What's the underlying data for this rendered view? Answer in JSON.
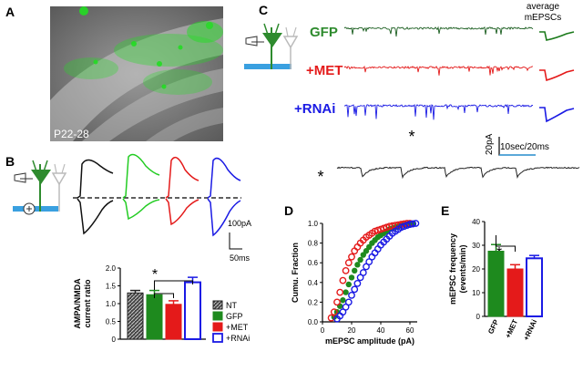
{
  "panels": {
    "a": {
      "letter": "A",
      "age_label": "P22-28"
    },
    "b": {
      "letter": "B",
      "scale_current": "100pA",
      "scale_time": "50ms",
      "ylabel_line1": "AMPA/NMDA",
      "ylabel_line2": "current ratio",
      "star1": "*",
      "star2": "*"
    },
    "c": {
      "letter": "C",
      "avg_title_line1": "average",
      "avg_title_line2": "mEPSCs",
      "trace_labels": [
        "GFP",
        "+MET",
        "+RNAi"
      ],
      "star": "*",
      "scale_current": "20pA",
      "scale_time": "10sec/20ms",
      "inset_star": "*"
    },
    "d": {
      "letter": "D"
    },
    "e": {
      "letter": "E",
      "star": "*"
    }
  },
  "colors": {
    "nt": "#1a1a1a",
    "gfp": "#1e8a1e",
    "met": "#e41a1a",
    "rnai": "#1a1ae4",
    "gfp_trace": "#1b5e20",
    "gfp_label": "#2e8b2e"
  },
  "chart_data": [
    {
      "type": "bar",
      "panel": "B",
      "categories": [
        "NT",
        "GFP",
        "+MET",
        "+RNAi"
      ],
      "values": [
        1.3,
        1.25,
        0.98,
        1.6
      ],
      "errors": [
        0.07,
        0.12,
        0.1,
        0.14
      ],
      "ylabel": "AMPA/NMDA current ratio",
      "ylim": [
        0,
        2.0
      ],
      "yticks": [
        "0",
        "0.5",
        "1.0",
        "1.5",
        "2.0"
      ],
      "legend": [
        "NT",
        "GFP",
        "+MET",
        "+RNAi"
      ],
      "legend_position": "right"
    },
    {
      "type": "scatter",
      "panel": "D",
      "xlabel": "mEPSC amplitude (pA)",
      "ylabel": "Cumu. Fraction",
      "xlim": [
        0,
        65
      ],
      "ylim": [
        0,
        1.0
      ],
      "xticks": [
        "0",
        "20",
        "40",
        "60"
      ],
      "yticks": [
        "0.0",
        "0.2",
        "0.4",
        "0.6",
        "0.8",
        "1.0"
      ],
      "series": [
        {
          "color": "gfp",
          "hollow": false,
          "x": [
            8,
            10,
            12,
            14,
            16,
            18,
            20,
            22,
            24,
            26,
            28,
            30,
            32,
            34,
            36,
            38,
            40,
            42,
            44,
            46,
            48,
            50,
            52,
            54,
            56,
            58,
            60,
            62
          ],
          "y": [
            0.05,
            0.1,
            0.16,
            0.22,
            0.3,
            0.38,
            0.45,
            0.52,
            0.58,
            0.63,
            0.68,
            0.72,
            0.76,
            0.8,
            0.83,
            0.86,
            0.88,
            0.9,
            0.92,
            0.94,
            0.95,
            0.96,
            0.97,
            0.98,
            0.985,
            0.99,
            0.995,
            1.0
          ]
        },
        {
          "color": "met",
          "hollow": true,
          "x": [
            6,
            8,
            10,
            12,
            14,
            16,
            18,
            20,
            22,
            24,
            26,
            28,
            30,
            32,
            34,
            36,
            38,
            40,
            42,
            44,
            46,
            48,
            50,
            52,
            54,
            56,
            58,
            60
          ],
          "y": [
            0.04,
            0.1,
            0.2,
            0.3,
            0.42,
            0.52,
            0.6,
            0.66,
            0.72,
            0.76,
            0.8,
            0.83,
            0.86,
            0.88,
            0.9,
            0.92,
            0.93,
            0.94,
            0.95,
            0.96,
            0.97,
            0.975,
            0.98,
            0.985,
            0.99,
            0.995,
            1.0,
            1.0
          ]
        },
        {
          "color": "rnai",
          "hollow": true,
          "x": [
            10,
            12,
            14,
            16,
            18,
            20,
            22,
            24,
            26,
            28,
            30,
            32,
            34,
            36,
            38,
            40,
            42,
            44,
            46,
            48,
            50,
            52,
            54,
            56,
            58,
            60,
            62,
            64
          ],
          "y": [
            0.03,
            0.06,
            0.1,
            0.15,
            0.2,
            0.27,
            0.33,
            0.39,
            0.45,
            0.5,
            0.56,
            0.61,
            0.66,
            0.7,
            0.74,
            0.78,
            0.81,
            0.84,
            0.87,
            0.9,
            0.92,
            0.94,
            0.96,
            0.97,
            0.98,
            0.99,
            0.995,
            1.0
          ]
        }
      ]
    },
    {
      "type": "bar",
      "panel": "E",
      "categories": [
        "GFP",
        "+MET",
        "+RNAi"
      ],
      "values": [
        27.5,
        20.0,
        24.5
      ],
      "errors": [
        2.8,
        1.8,
        1.2
      ],
      "ylabel_line1": "mEPSC frequency",
      "ylabel_line2": "(events/min)",
      "ylim": [
        0,
        40
      ],
      "yticks": [
        "0",
        "10",
        "20",
        "30",
        "40"
      ]
    }
  ]
}
